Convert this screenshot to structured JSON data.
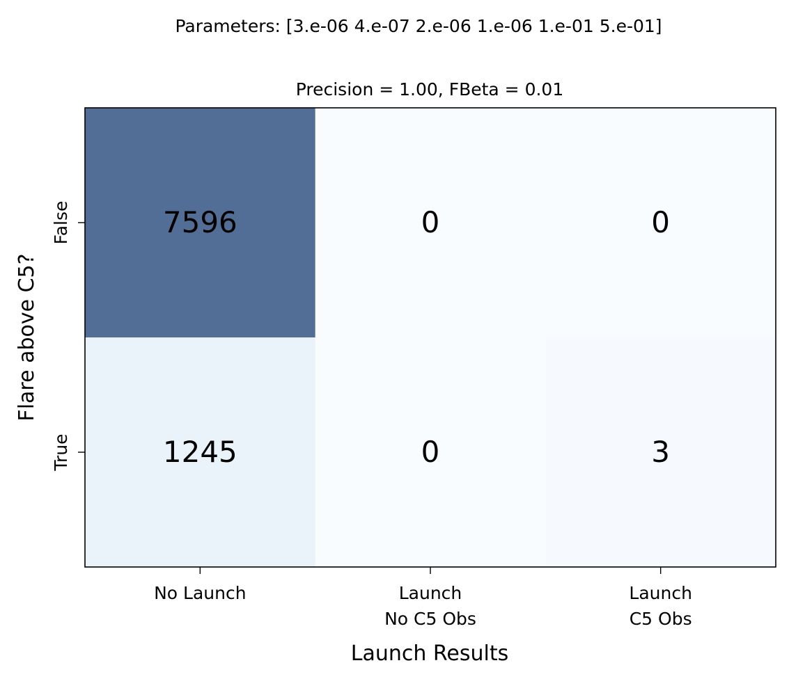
{
  "chart_data": {
    "type": "heatmap",
    "suptitle": "Parameters: [3.e-06 4.e-07 2.e-06 1.e-06 1.e-01 5.e-01]",
    "title": "Precision = 1.00, FBeta = 0.01",
    "xlabel": "Launch Results",
    "ylabel": "Flare above C5?",
    "x_categories": [
      [
        "No Launch"
      ],
      [
        "Launch",
        "No C5 Obs"
      ],
      [
        "Launch",
        "C5 Obs"
      ]
    ],
    "y_categories": [
      "False",
      "True"
    ],
    "values": [
      [
        7596,
        0,
        0
      ],
      [
        1245,
        0,
        3
      ]
    ],
    "colormap": "Blues",
    "colormap_range": [
      0,
      7596
    ],
    "cell_alpha": 0.7,
    "colors": {
      "low": "#f7fbff",
      "mid": "#dbe9f6",
      "high": "#08306b",
      "background": "#ffffff",
      "text": "#000000"
    }
  }
}
